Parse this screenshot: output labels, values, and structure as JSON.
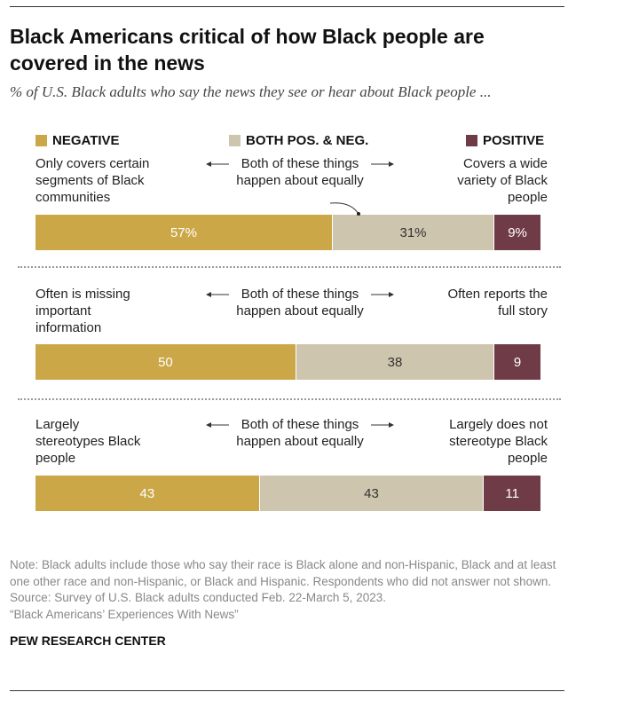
{
  "title": "Black Americans critical of how Black people are covered in the news",
  "subtitle": "% of U.S. Black adults who say the news they see or hear about Black people ...",
  "chart_data": {
    "type": "bar",
    "stacked": true,
    "orientation": "horizontal",
    "legend": [
      {
        "name": "NEGATIVE",
        "color": "#CBA747"
      },
      {
        "name": "BOTH POS. & NEG.",
        "color": "#CEC5AF"
      },
      {
        "name": "POSITIVE",
        "color": "#6E3B47"
      }
    ],
    "rows": [
      {
        "negative_label": "Only covers certain segments of Black communities",
        "both_label": "Both of these things happen about equally",
        "positive_label": "Covers a wide variety of Black people",
        "values": [
          57,
          31,
          9
        ],
        "value_labels": [
          "57%",
          "31%",
          "9%"
        ]
      },
      {
        "negative_label": "Often is missing important information",
        "both_label": "Both of these things happen about equally",
        "positive_label": "Often reports the full story",
        "values": [
          50,
          38,
          9
        ],
        "value_labels": [
          "50",
          "38",
          "9"
        ]
      },
      {
        "negative_label": "Largely stereotypes Black people",
        "both_label": "Both of these things happen about equally",
        "positive_label": "Largely does not stereotype Black people",
        "values": [
          43,
          43,
          11
        ],
        "value_labels": [
          "43",
          "43",
          "11"
        ]
      }
    ]
  },
  "note": "Note: Black adults include those who say their race is Black alone and non-Hispanic, Black and at least one other race and non-Hispanic, or Black and Hispanic. Respondents who did not answer not shown.",
  "source": "Source: Survey of U.S. Black adults conducted Feb. 22-March 5, 2023.",
  "report": "“Black Americans’ Experiences With News”",
  "brand": "PEW RESEARCH CENTER"
}
